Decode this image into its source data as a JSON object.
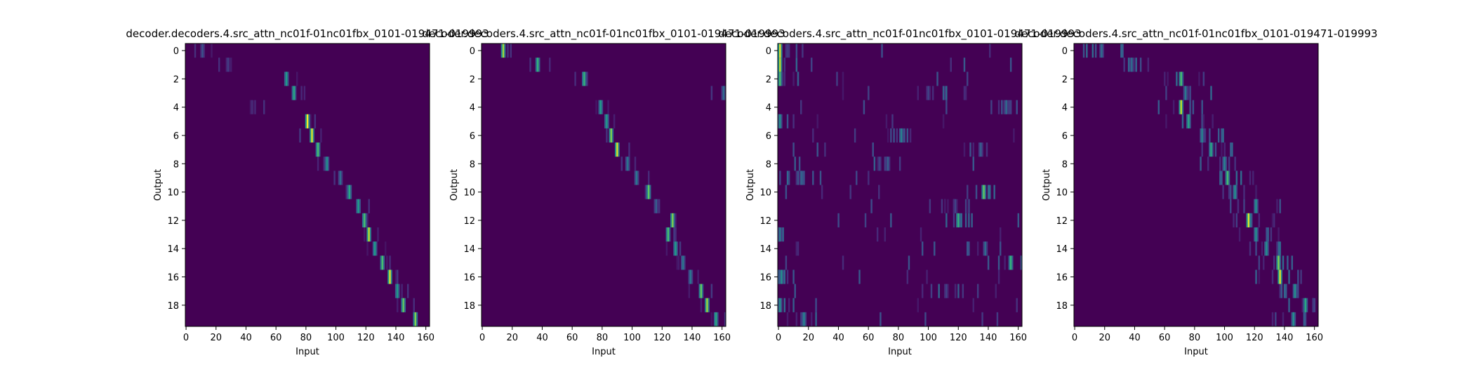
{
  "figure": {
    "background": "#ffffff",
    "colormap": "viridis"
  },
  "chart_data": [
    {
      "type": "heatmap",
      "title": "decoder.decoders.4.src_attn_nc01f-01nc01fbx_0101-019471-019993",
      "xlabel": "Input",
      "ylabel": "Output",
      "x_range": [
        0,
        163
      ],
      "y_range": [
        0,
        20
      ],
      "x_ticks": [
        0,
        20,
        40,
        60,
        80,
        100,
        120,
        140,
        160
      ],
      "y_ticks": [
        0,
        2,
        4,
        6,
        8,
        10,
        12,
        14,
        16,
        18
      ],
      "grid": false,
      "pattern": "sharp diagonal",
      "peaks": [
        {
          "row": 0,
          "input": 11,
          "weight": 0.25
        },
        {
          "row": 1,
          "input": 28,
          "weight": 0.18
        },
        {
          "row": 2,
          "input": 67,
          "weight": 0.55
        },
        {
          "row": 3,
          "input": 72,
          "weight": 0.6
        },
        {
          "row": 4,
          "input": 44,
          "weight": 0.12
        },
        {
          "row": 5,
          "input": 81,
          "weight": 1.0
        },
        {
          "row": 6,
          "input": 84,
          "weight": 0.95
        },
        {
          "row": 7,
          "input": 88,
          "weight": 0.7
        },
        {
          "row": 8,
          "input": 94,
          "weight": 0.5
        },
        {
          "row": 9,
          "input": 103,
          "weight": 0.35
        },
        {
          "row": 10,
          "input": 109,
          "weight": 0.6
        },
        {
          "row": 11,
          "input": 115,
          "weight": 0.55
        },
        {
          "row": 12,
          "input": 119,
          "weight": 0.7
        },
        {
          "row": 13,
          "input": 122,
          "weight": 0.9
        },
        {
          "row": 14,
          "input": 126,
          "weight": 0.55
        },
        {
          "row": 15,
          "input": 131,
          "weight": 0.7
        },
        {
          "row": 16,
          "input": 136,
          "weight": 0.95
        },
        {
          "row": 17,
          "input": 141,
          "weight": 0.55
        },
        {
          "row": 18,
          "input": 145,
          "weight": 0.75
        },
        {
          "row": 19,
          "input": 153,
          "weight": 0.8
        }
      ]
    },
    {
      "type": "heatmap",
      "title": "decoder.decoders.4.src_attn_nc01f-01nc01fbx_0101-019471-019993",
      "xlabel": "Input",
      "ylabel": "Output",
      "x_range": [
        0,
        163
      ],
      "y_range": [
        0,
        20
      ],
      "x_ticks": [
        0,
        20,
        40,
        60,
        80,
        100,
        120,
        140,
        160
      ],
      "y_ticks": [
        0,
        2,
        4,
        6,
        8,
        10,
        12,
        14,
        16,
        18
      ],
      "grid": false,
      "pattern": "sharp diagonal",
      "peaks": [
        {
          "row": 0,
          "input": 14,
          "weight": 0.85
        },
        {
          "row": 1,
          "input": 37,
          "weight": 0.65
        },
        {
          "row": 2,
          "input": 68,
          "weight": 0.65
        },
        {
          "row": 3,
          "input": 161,
          "weight": 0.35
        },
        {
          "row": 4,
          "input": 79,
          "weight": 0.55
        },
        {
          "row": 5,
          "input": 83,
          "weight": 0.55
        },
        {
          "row": 6,
          "input": 86,
          "weight": 0.8
        },
        {
          "row": 7,
          "input": 90,
          "weight": 0.95
        },
        {
          "row": 8,
          "input": 97,
          "weight": 0.4
        },
        {
          "row": 9,
          "input": 103,
          "weight": 0.4
        },
        {
          "row": 10,
          "input": 111,
          "weight": 0.75
        },
        {
          "row": 11,
          "input": 116,
          "weight": 0.3
        },
        {
          "row": 12,
          "input": 127,
          "weight": 0.8
        },
        {
          "row": 13,
          "input": 124,
          "weight": 0.7
        },
        {
          "row": 14,
          "input": 129,
          "weight": 0.55
        },
        {
          "row": 15,
          "input": 134,
          "weight": 0.4
        },
        {
          "row": 16,
          "input": 139,
          "weight": 0.4
        },
        {
          "row": 17,
          "input": 146,
          "weight": 0.75
        },
        {
          "row": 18,
          "input": 150,
          "weight": 0.85
        },
        {
          "row": 19,
          "input": 156,
          "weight": 0.6
        }
      ]
    },
    {
      "type": "heatmap",
      "title": "decoder.decoders.4.src_attn_nc01f-01nc01fbx_0101-019471-019993",
      "xlabel": "Input",
      "ylabel": "Output",
      "x_range": [
        0,
        163
      ],
      "y_range": [
        0,
        20
      ],
      "x_ticks": [
        0,
        20,
        40,
        60,
        80,
        100,
        120,
        140,
        160
      ],
      "y_ticks": [
        0,
        2,
        4,
        6,
        8,
        10,
        12,
        14,
        16,
        18
      ],
      "grid": false,
      "pattern": "scattered",
      "peaks": [
        {
          "row": 0,
          "input": 1,
          "weight": 0.95
        },
        {
          "row": 1,
          "input": 1,
          "weight": 0.9
        },
        {
          "row": 2,
          "input": 1,
          "weight": 0.7
        },
        {
          "row": 3,
          "input": 100,
          "weight": 0.2
        },
        {
          "row": 4,
          "input": 152,
          "weight": 0.35
        },
        {
          "row": 5,
          "input": 1,
          "weight": 0.5
        },
        {
          "row": 6,
          "input": 82,
          "weight": 0.45
        },
        {
          "row": 7,
          "input": 135,
          "weight": 0.3
        },
        {
          "row": 8,
          "input": 73,
          "weight": 0.3
        },
        {
          "row": 9,
          "input": 13,
          "weight": 0.25
        },
        {
          "row": 10,
          "input": 137,
          "weight": 0.75
        },
        {
          "row": 11,
          "input": 118,
          "weight": 0.2
        },
        {
          "row": 12,
          "input": 120,
          "weight": 0.65
        },
        {
          "row": 13,
          "input": 1,
          "weight": 0.4
        },
        {
          "row": 14,
          "input": 138,
          "weight": 0.35
        },
        {
          "row": 15,
          "input": 155,
          "weight": 0.65
        },
        {
          "row": 16,
          "input": 2,
          "weight": 0.5
        },
        {
          "row": 17,
          "input": 112,
          "weight": 0.2
        },
        {
          "row": 18,
          "input": 1,
          "weight": 0.5
        },
        {
          "row": 19,
          "input": 17,
          "weight": 0.45
        }
      ]
    },
    {
      "type": "heatmap",
      "title": "decoder.decoders.4.src_attn_nc01f-01nc01fbx_0101-019471-019993",
      "xlabel": "Input",
      "ylabel": "Output",
      "x_range": [
        0,
        163
      ],
      "y_range": [
        0,
        20
      ],
      "x_ticks": [
        0,
        20,
        40,
        60,
        80,
        100,
        120,
        140,
        160
      ],
      "y_ticks": [
        0,
        2,
        4,
        6,
        8,
        10,
        12,
        14,
        16,
        18
      ],
      "grid": false,
      "pattern": "diffuse diagonal",
      "peaks": [
        {
          "row": 0,
          "input": 18,
          "weight": 0.35
        },
        {
          "row": 1,
          "input": 38,
          "weight": 0.35
        },
        {
          "row": 2,
          "input": 71,
          "weight": 0.7
        },
        {
          "row": 3,
          "input": 74,
          "weight": 0.4
        },
        {
          "row": 4,
          "input": 71,
          "weight": 0.9
        },
        {
          "row": 5,
          "input": 76,
          "weight": 0.6
        },
        {
          "row": 6,
          "input": 85,
          "weight": 0.45
        },
        {
          "row": 7,
          "input": 91,
          "weight": 0.6
        },
        {
          "row": 8,
          "input": 100,
          "weight": 0.45
        },
        {
          "row": 9,
          "input": 102,
          "weight": 0.7
        },
        {
          "row": 10,
          "input": 107,
          "weight": 0.5
        },
        {
          "row": 11,
          "input": 121,
          "weight": 0.5
        },
        {
          "row": 12,
          "input": 116,
          "weight": 0.95
        },
        {
          "row": 13,
          "input": 121,
          "weight": 0.5
        },
        {
          "row": 14,
          "input": 128,
          "weight": 0.5
        },
        {
          "row": 15,
          "input": 136,
          "weight": 0.8
        },
        {
          "row": 16,
          "input": 137,
          "weight": 0.95
        },
        {
          "row": 17,
          "input": 147,
          "weight": 0.5
        },
        {
          "row": 18,
          "input": 154,
          "weight": 0.6
        },
        {
          "row": 19,
          "input": 146,
          "weight": 0.5
        }
      ]
    }
  ]
}
